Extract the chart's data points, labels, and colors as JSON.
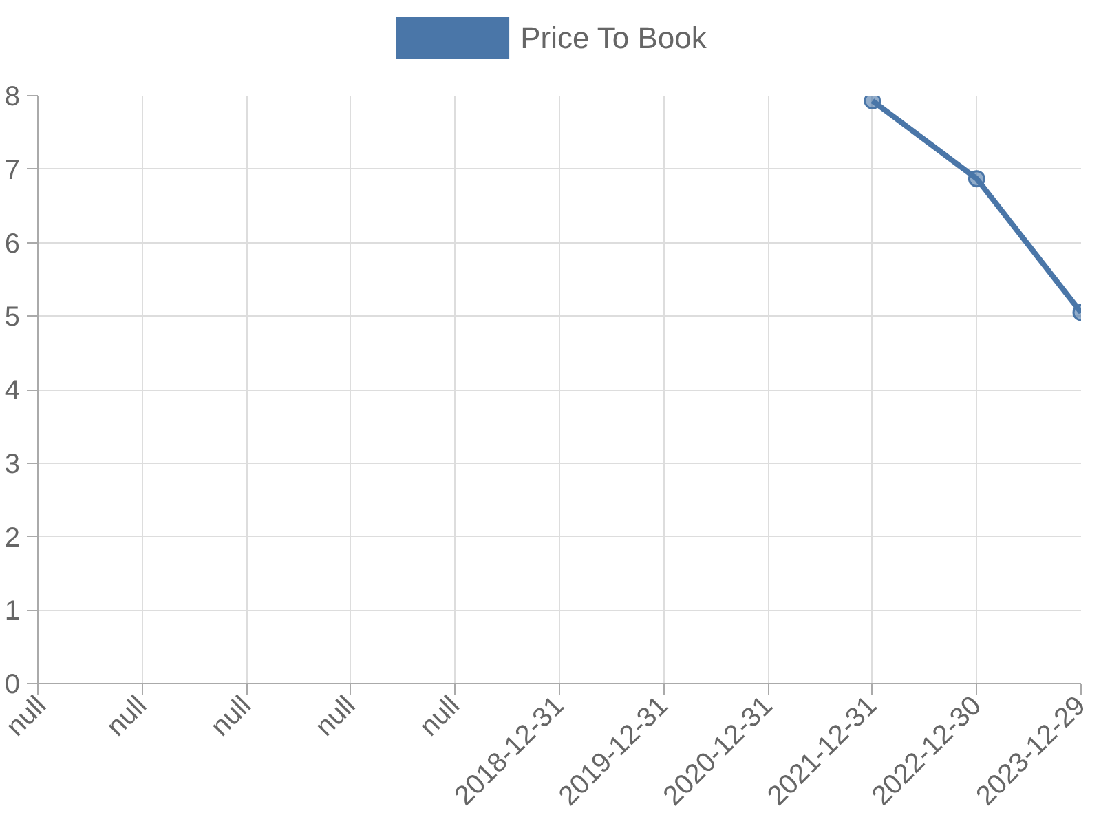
{
  "chart_data": {
    "type": "line",
    "categories": [
      "null",
      "null",
      "null",
      "null",
      "null",
      "2018-12-31",
      "2019-12-31",
      "2020-12-31",
      "2021-12-31",
      "2022-12-30",
      "2023-12-29"
    ],
    "series": [
      {
        "name": "Price To Book",
        "color": "#4a76a8",
        "values": [
          null,
          null,
          null,
          null,
          null,
          null,
          null,
          null,
          7.93,
          6.87,
          5.05
        ]
      }
    ],
    "ylim": [
      0,
      8
    ],
    "yticks": [
      0,
      1,
      2,
      3,
      4,
      5,
      6,
      7,
      8
    ],
    "grid": true,
    "legend": "top",
    "marker": "circle",
    "line_style": "solid"
  }
}
